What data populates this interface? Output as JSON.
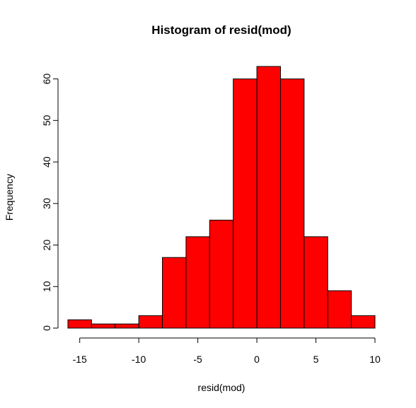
{
  "chart_data": {
    "type": "bar",
    "title": "Histogram of resid(mod)",
    "xlabel": "resid(mod)",
    "ylabel": "Frequency",
    "bin_edges": [
      -16,
      -14,
      -12,
      -10,
      -8,
      -6,
      -4,
      -2,
      0,
      2,
      4,
      6,
      8,
      10
    ],
    "values": [
      2,
      1,
      1,
      3,
      17,
      22,
      26,
      60,
      63,
      60,
      22,
      9,
      3
    ],
    "xlim": [
      -16,
      10
    ],
    "ylim": [
      0,
      63
    ],
    "x_ticks": [
      -15,
      -10,
      -5,
      0,
      5,
      10
    ],
    "y_ticks": [
      0,
      10,
      20,
      30,
      40,
      50,
      60
    ],
    "bar_color": "#ff0000",
    "grid": false
  }
}
